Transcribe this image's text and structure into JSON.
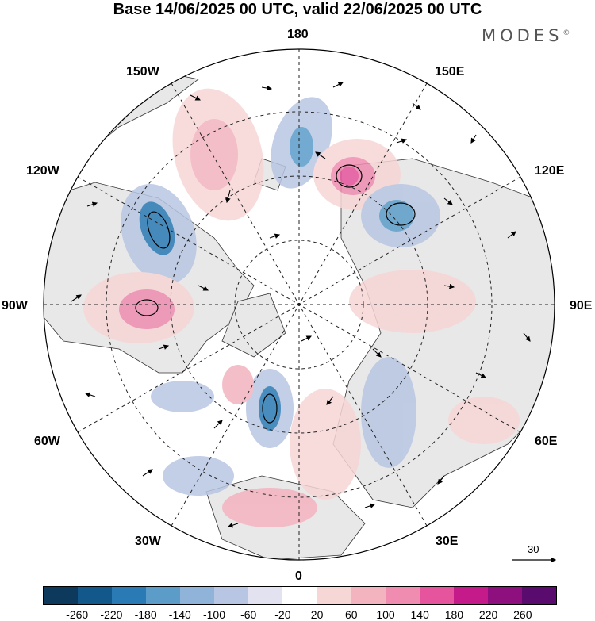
{
  "title": "Base 14/06/2025 00 UTC, valid 22/06/2025 00 UTC",
  "logo": {
    "text": "MODES",
    "mark": "©"
  },
  "longitude_labels": {
    "top": "180",
    "bottom": "0",
    "left": "90W",
    "right": "90E",
    "upper_left": "150W",
    "upper_right": "150E",
    "mid_upper_left": "120W",
    "mid_upper_right": "120E",
    "mid_lower_left": "60W",
    "mid_lower_right": "60E",
    "lower_left": "30W",
    "lower_right": "30E"
  },
  "reference_vector": {
    "value": "30"
  },
  "colorbar": {
    "colors": [
      "#0d3a5c",
      "#13588a",
      "#2a7ab5",
      "#5b9cc9",
      "#8fb3d9",
      "#b9c6e3",
      "#e2e2f0",
      "#ffffff",
      "#f7d6d6",
      "#f3b3bf",
      "#ef8cb0",
      "#e6549e",
      "#c51b8a",
      "#8e0f7e",
      "#5a0b6e"
    ],
    "ticks": [
      "-260",
      "-220",
      "-180",
      "-140",
      "-100",
      "-60",
      "-20",
      "20",
      "60",
      "100",
      "140",
      "180",
      "220",
      "260"
    ]
  }
}
